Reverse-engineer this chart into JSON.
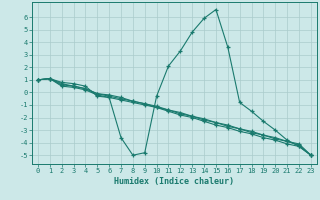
{
  "title": "",
  "xlabel": "Humidex (Indice chaleur)",
  "xlim": [
    -0.5,
    23.5
  ],
  "ylim": [
    -5.7,
    7.2
  ],
  "yticks": [
    -5,
    -4,
    -3,
    -2,
    -1,
    0,
    1,
    2,
    3,
    4,
    5,
    6
  ],
  "xticks": [
    0,
    1,
    2,
    3,
    4,
    5,
    6,
    7,
    8,
    9,
    10,
    11,
    12,
    13,
    14,
    15,
    16,
    17,
    18,
    19,
    20,
    21,
    22,
    23
  ],
  "background_color": "#cce8e8",
  "grid_color": "#aacccc",
  "line_color": "#1a7a6e",
  "series": [
    {
      "x": [
        0,
        1,
        2,
        3,
        4,
        5,
        6,
        7,
        8,
        9,
        10,
        11,
        12,
        13,
        14,
        15,
        16,
        17,
        18,
        19,
        20,
        21,
        22,
        23
      ],
      "y": [
        1.0,
        1.1,
        0.8,
        0.7,
        0.5,
        -0.3,
        -0.4,
        -3.6,
        -5.0,
        -4.8,
        -0.3,
        2.1,
        3.3,
        4.8,
        5.9,
        6.6,
        3.6,
        -0.8,
        -1.5,
        -2.3,
        -3.0,
        -3.8,
        -4.3,
        -5.0
      ]
    },
    {
      "x": [
        0,
        1,
        2,
        3,
        4,
        5,
        6,
        7,
        8,
        9,
        10,
        11,
        12,
        13,
        14,
        15,
        16,
        17,
        18,
        19,
        20,
        21,
        22,
        23
      ],
      "y": [
        1.0,
        1.1,
        0.5,
        0.4,
        0.2,
        -0.2,
        -0.4,
        -0.6,
        -0.8,
        -1.0,
        -1.2,
        -1.5,
        -1.8,
        -2.0,
        -2.3,
        -2.6,
        -2.8,
        -3.1,
        -3.3,
        -3.6,
        -3.8,
        -4.1,
        -4.3,
        -5.0
      ]
    },
    {
      "x": [
        0,
        1,
        2,
        3,
        4,
        5,
        6,
        7,
        8,
        9,
        10,
        11,
        12,
        13,
        14,
        15,
        16,
        17,
        18,
        19,
        20,
        21,
        22,
        23
      ],
      "y": [
        1.0,
        1.1,
        0.6,
        0.5,
        0.3,
        -0.1,
        -0.3,
        -0.5,
        -0.7,
        -0.9,
        -1.2,
        -1.4,
        -1.7,
        -1.9,
        -2.2,
        -2.4,
        -2.7,
        -2.9,
        -3.2,
        -3.4,
        -3.7,
        -3.9,
        -4.2,
        -5.0
      ]
    },
    {
      "x": [
        0,
        1,
        2,
        3,
        4,
        5,
        6,
        7,
        8,
        9,
        10,
        11,
        12,
        13,
        14,
        15,
        16,
        17,
        18,
        19,
        20,
        21,
        22,
        23
      ],
      "y": [
        1.0,
        1.1,
        0.7,
        0.5,
        0.3,
        -0.1,
        -0.2,
        -0.4,
        -0.7,
        -0.9,
        -1.1,
        -1.4,
        -1.6,
        -1.9,
        -2.1,
        -2.4,
        -2.6,
        -2.9,
        -3.1,
        -3.4,
        -3.6,
        -3.9,
        -4.1,
        -5.0
      ]
    }
  ]
}
